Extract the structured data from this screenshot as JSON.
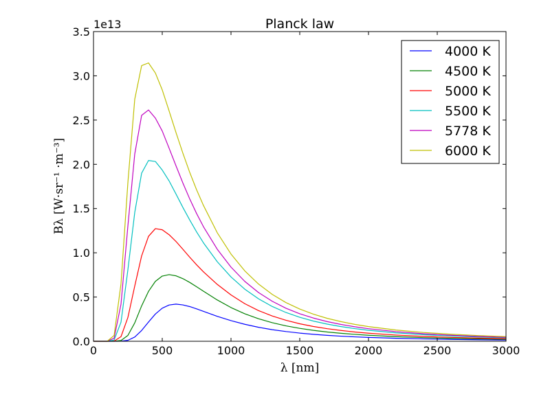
{
  "chart_data": {
    "type": "line",
    "title": "Planck law",
    "xlabel": "λ [nm]",
    "ylabel": "Bλ [W·sr⁻¹ ·m⁻³]",
    "x_scale": "linear",
    "y_scale": "linear",
    "xlim": [
      0,
      3000
    ],
    "ylim": [
      0,
      35000000000000.0
    ],
    "y_offset_text": "1e13",
    "x_ticks": [
      0,
      500,
      1000,
      1500,
      2000,
      2500,
      3000
    ],
    "x_tick_labels": [
      "0",
      "500",
      "1000",
      "1500",
      "2000",
      "2500",
      "3000"
    ],
    "y_ticks": [
      0,
      0.5,
      1.0,
      1.5,
      2.0,
      2.5,
      3.0,
      3.5
    ],
    "y_tick_labels": [
      "0.0",
      "0.5",
      "1.0",
      "1.5",
      "2.0",
      "2.5",
      "3.0",
      "3.5"
    ],
    "grid": false,
    "legend_position": "top-right",
    "x": [
      0,
      100,
      150,
      200,
      250,
      300,
      350,
      400,
      450,
      500,
      550,
      600,
      650,
      700,
      750,
      800,
      900,
      1000,
      1100,
      1200,
      1300,
      1400,
      1500,
      1600,
      1700,
      1800,
      1900,
      2000,
      2200,
      2400,
      2600,
      2800,
      3000
    ],
    "series": [
      {
        "name": "4000 K",
        "color": "#0000ff",
        "values": [
          0,
          0,
          1e-05,
          0.00089,
          0.0107,
          0.0482,
          0.122,
          0.217,
          0.308,
          0.374,
          0.41,
          0.42,
          0.411,
          0.392,
          0.366,
          0.338,
          0.282,
          0.233,
          0.192,
          0.158,
          0.131,
          0.11,
          0.0924,
          0.0785,
          0.0671,
          0.0578,
          0.0501,
          0.0437,
          0.0338,
          0.0266,
          0.0213,
          0.0173,
          0.0142
        ]
      },
      {
        "name": "4500 K",
        "color": "#008000",
        "values": [
          0,
          0,
          0.00023,
          0.0087,
          0.0658,
          0.208,
          0.4,
          0.564,
          0.677,
          0.737,
          0.753,
          0.74,
          0.708,
          0.665,
          0.616,
          0.566,
          0.467,
          0.381,
          0.311,
          0.255,
          0.21,
          0.174,
          0.146,
          0.123,
          0.105,
          0.0902,
          0.0781,
          0.0679,
          0.0524,
          0.0412,
          0.0329,
          0.0266,
          0.0219
        ]
      },
      {
        "name": "5000 K",
        "color": "#ff0000",
        "values": [
          0,
          0,
          0.0023,
          0.0525,
          0.268,
          0.625,
          0.965,
          1.186,
          1.273,
          1.26,
          1.204,
          1.128,
          1.04,
          0.95,
          0.864,
          0.784,
          0.643,
          0.524,
          0.425,
          0.347,
          0.286,
          0.237,
          0.198,
          0.167,
          0.142,
          0.122,
          0.105,
          0.0913,
          0.0703,
          0.0552,
          0.0441,
          0.0357,
          0.0293
        ]
      },
      {
        "name": "5500 K",
        "color": "#00bfbf",
        "values": [
          0,
          1e-05,
          0.0141,
          0.216,
          0.806,
          1.456,
          1.9,
          2.043,
          2.032,
          1.935,
          1.812,
          1.664,
          1.513,
          1.37,
          1.235,
          1.112,
          0.899,
          0.727,
          0.589,
          0.48,
          0.393,
          0.325,
          0.271,
          0.228,
          0.194,
          0.166,
          0.143,
          0.124,
          0.0953,
          0.0747,
          0.0596,
          0.0483,
          0.0396
        ]
      },
      {
        "name": "5778 K",
        "color": "#bf00bf",
        "values": [
          0,
          3e-05,
          0.0353,
          0.419,
          1.302,
          2.117,
          2.553,
          2.614,
          2.522,
          2.376,
          2.181,
          1.983,
          1.789,
          1.608,
          1.443,
          1.294,
          1.04,
          0.838,
          0.677,
          0.551,
          0.452,
          0.373,
          0.311,
          0.262,
          0.222,
          0.19,
          0.164,
          0.142,
          0.109,
          0.0854,
          0.0681,
          0.0551,
          0.0452
        ]
      },
      {
        "name": "6000 K",
        "color": "#bfbf00",
        "values": [
          0,
          9e-05,
          0.0667,
          0.65,
          1.791,
          2.736,
          3.115,
          3.146,
          3.032,
          2.841,
          2.602,
          2.359,
          2.126,
          1.908,
          1.711,
          1.534,
          1.227,
          0.986,
          0.796,
          0.647,
          0.53,
          0.437,
          0.364,
          0.306,
          0.259,
          0.222,
          0.191,
          0.166,
          0.127,
          0.0995,
          0.0794,
          0.0643,
          0.0527
        ]
      }
    ]
  }
}
